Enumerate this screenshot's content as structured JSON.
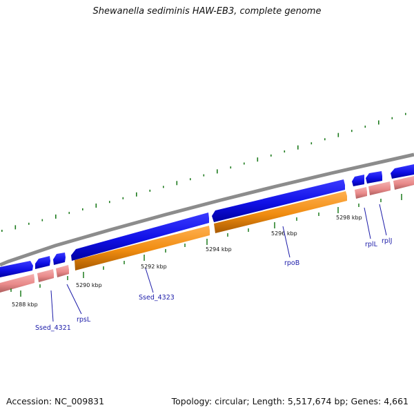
{
  "title": "Shewanella sediminis HAW-EB3, complete genome",
  "footer": {
    "accession": "Accession: NC_009831",
    "summary": "Topology: circular; Length: 5,517,674 bp; Genes: 4,661"
  },
  "colors": {
    "backbone": "#8c8c8c",
    "forward_cds": "#1010e6",
    "reverse_cds": "#e98a8a",
    "orange_feature": "#f08c10",
    "gc_ticks": "#1c7a1c",
    "label": "#1a1aa8"
  },
  "tick_labels": [
    "5288 kbp",
    "5290 kbp",
    "5292 kbp",
    "5294 kbp",
    "5296 kbp",
    "5298 kbp"
  ],
  "gene_labels": [
    "Ssed_4321",
    "rpsL",
    "Ssed_4323",
    "rpoB",
    "rplL",
    "rplJ"
  ]
}
